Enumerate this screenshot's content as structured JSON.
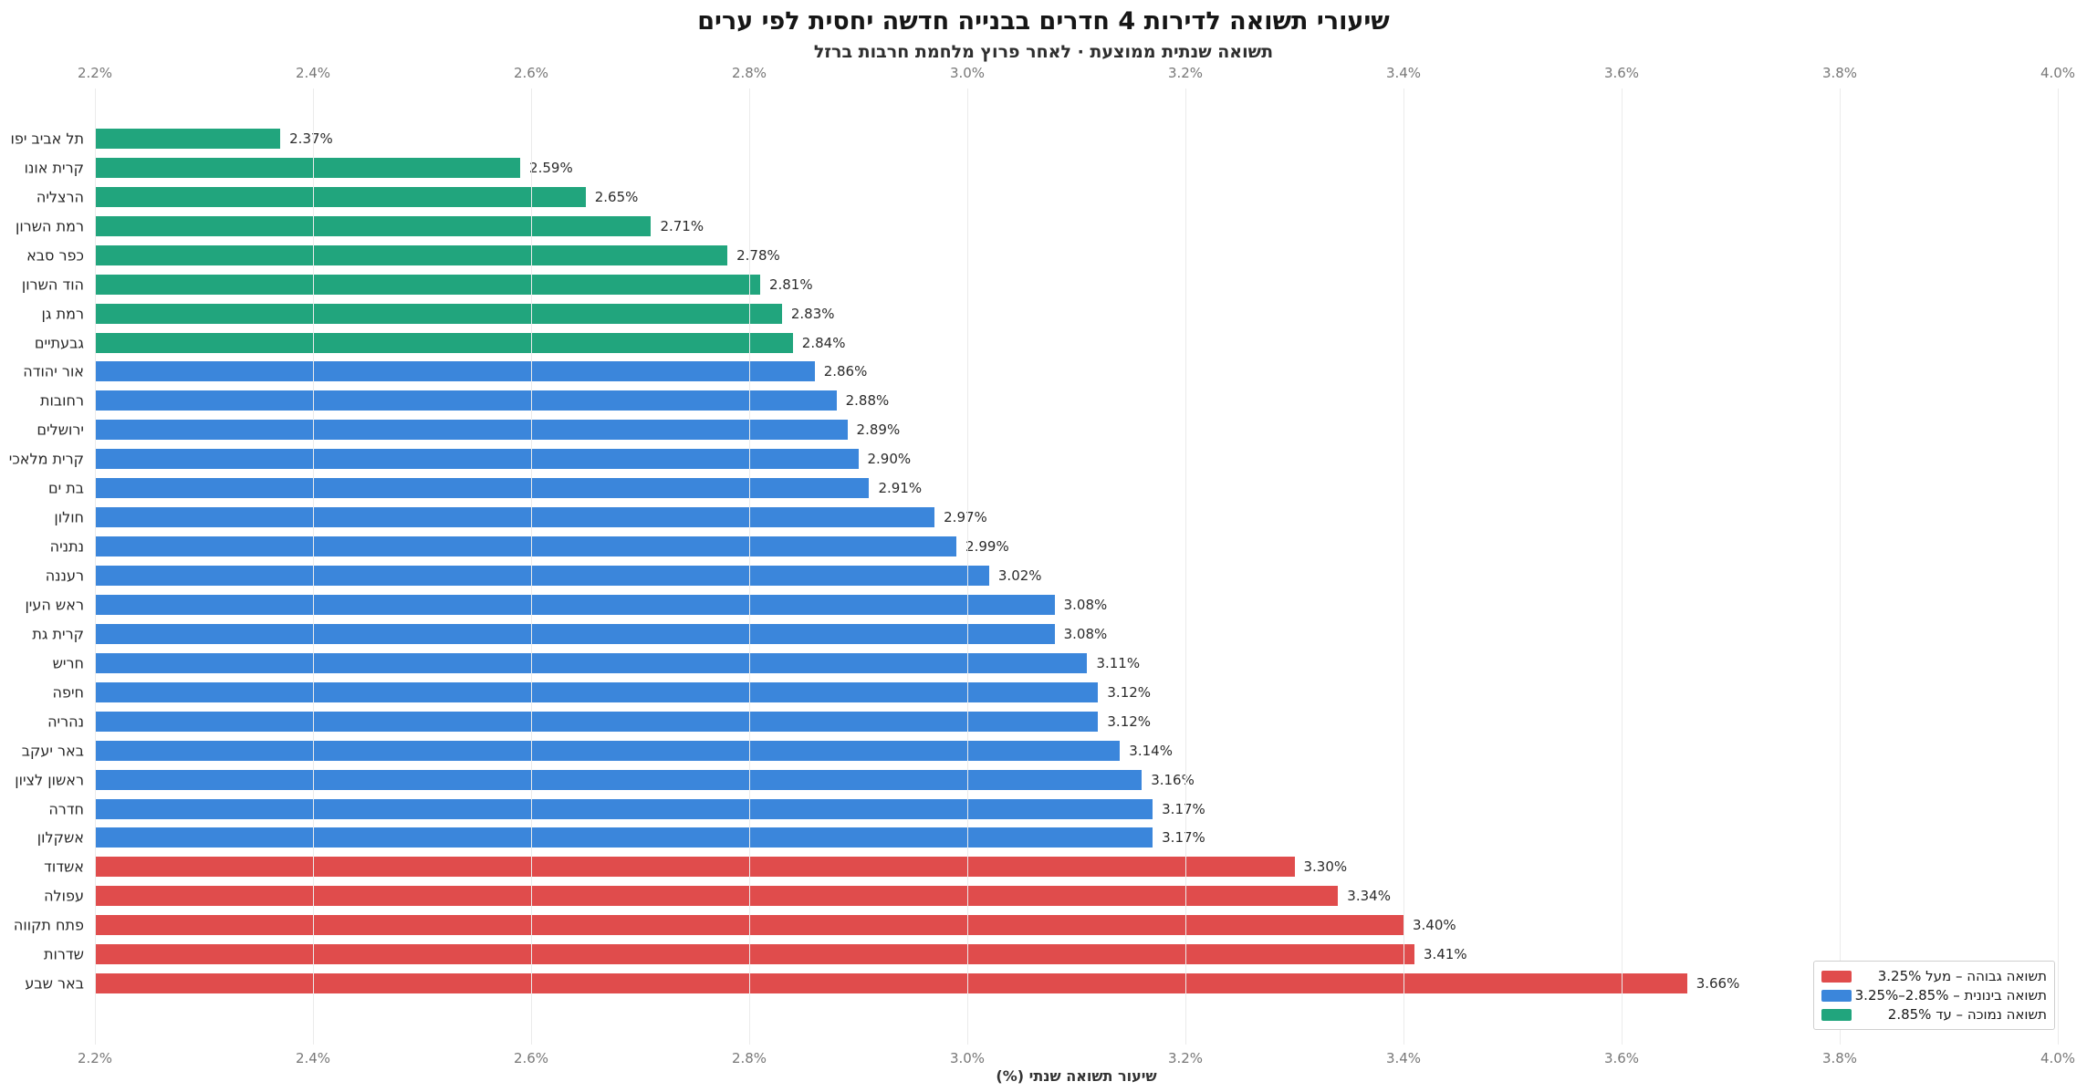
{
  "chart_data": {
    "type": "bar",
    "orientation": "horizontal",
    "title": "שיעורי תשואה לדירות 4 חדרים בבנייה חדשה יחסית לפי ערים",
    "subtitle": "תשואה שנתית ממוצעת · לאחר פרוץ מלחמת חרבות ברזל",
    "xlabel": "שיעור תשואה שנתי (%)",
    "xlim": [
      2.2,
      4.0
    ],
    "x_ticks": [
      2.2,
      2.4,
      2.6,
      2.8,
      3.0,
      3.2,
      3.4,
      3.6,
      3.8,
      4.0
    ],
    "x_tick_labels": [
      "2.2%",
      "2.4%",
      "2.6%",
      "2.8%",
      "3.0%",
      "3.2%",
      "3.4%",
      "3.6%",
      "3.8%",
      "4.0%"
    ],
    "grid": true,
    "colors": {
      "low": "#21a57d",
      "mid": "#3b86db",
      "high": "#e04c4c"
    },
    "bars": [
      {
        "city": "תל אביב יפו",
        "value": 2.37,
        "label": "2.37%",
        "band": "low"
      },
      {
        "city": "קרית אונו",
        "value": 2.59,
        "label": "2.59%",
        "band": "low"
      },
      {
        "city": "הרצליה",
        "value": 2.65,
        "label": "2.65%",
        "band": "low"
      },
      {
        "city": "רמת השרון",
        "value": 2.71,
        "label": "2.71%",
        "band": "low"
      },
      {
        "city": "כפר סבא",
        "value": 2.78,
        "label": "2.78%",
        "band": "low"
      },
      {
        "city": "הוד השרון",
        "value": 2.81,
        "label": "2.81%",
        "band": "low"
      },
      {
        "city": "רמת גן",
        "value": 2.83,
        "label": "2.83%",
        "band": "low"
      },
      {
        "city": "גבעתיים",
        "value": 2.84,
        "label": "2.84%",
        "band": "low"
      },
      {
        "city": "אור יהודה",
        "value": 2.86,
        "label": "2.86%",
        "band": "mid"
      },
      {
        "city": "רחובות",
        "value": 2.88,
        "label": "2.88%",
        "band": "mid"
      },
      {
        "city": "ירושלים",
        "value": 2.89,
        "label": "2.89%",
        "band": "mid"
      },
      {
        "city": "קרית מלאכי",
        "value": 2.9,
        "label": "2.90%",
        "band": "mid"
      },
      {
        "city": "בת ים",
        "value": 2.91,
        "label": "2.91%",
        "band": "mid"
      },
      {
        "city": "חולון",
        "value": 2.97,
        "label": "2.97%",
        "band": "mid"
      },
      {
        "city": "נתניה",
        "value": 2.99,
        "label": "2.99%",
        "band": "mid"
      },
      {
        "city": "רעננה",
        "value": 3.02,
        "label": "3.02%",
        "band": "mid"
      },
      {
        "city": "ראש העין",
        "value": 3.08,
        "label": "3.08%",
        "band": "mid"
      },
      {
        "city": "קרית גת",
        "value": 3.08,
        "label": "3.08%",
        "band": "mid"
      },
      {
        "city": "חריש",
        "value": 3.11,
        "label": "3.11%",
        "band": "mid"
      },
      {
        "city": "חיפה",
        "value": 3.12,
        "label": "3.12%",
        "band": "mid"
      },
      {
        "city": "נהריה",
        "value": 3.12,
        "label": "3.12%",
        "band": "mid"
      },
      {
        "city": "באר יעקב",
        "value": 3.14,
        "label": "3.14%",
        "band": "mid"
      },
      {
        "city": "ראשון לציון",
        "value": 3.16,
        "label": "3.16%",
        "band": "mid"
      },
      {
        "city": "חדרה",
        "value": 3.17,
        "label": "3.17%",
        "band": "mid"
      },
      {
        "city": "אשקלון",
        "value": 3.17,
        "label": "3.17%",
        "band": "mid"
      },
      {
        "city": "אשדוד",
        "value": 3.3,
        "label": "3.30%",
        "band": "high"
      },
      {
        "city": "עפולה",
        "value": 3.34,
        "label": "3.34%",
        "band": "high"
      },
      {
        "city": "פתח תקווה",
        "value": 3.4,
        "label": "3.40%",
        "band": "high"
      },
      {
        "city": "שדרות",
        "value": 3.41,
        "label": "3.41%",
        "band": "high"
      },
      {
        "city": "באר שבע",
        "value": 3.66,
        "label": "3.66%",
        "band": "high"
      }
    ],
    "legend": {
      "position": "bottom-right",
      "items": [
        {
          "band": "high",
          "color": "#e04c4c",
          "label": "תשואה גבוהה – מעל 3.25%"
        },
        {
          "band": "mid",
          "color": "#3b86db",
          "label": "תשואה בינונית – 2.85%–3.25%"
        },
        {
          "band": "low",
          "color": "#21a57d",
          "label": "תשואה נמוכה – עד 2.85%"
        }
      ]
    }
  }
}
